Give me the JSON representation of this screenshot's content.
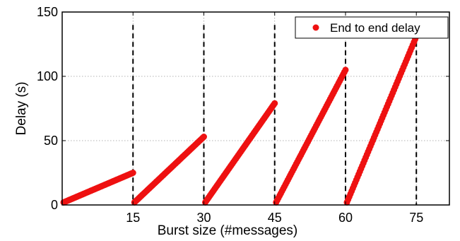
{
  "chart_data": {
    "type": "scatter",
    "title": "",
    "xlabel": "Burst size (#messages)",
    "ylabel": "Delay (s)",
    "xlim": [
      0,
      82
    ],
    "ylim": [
      0,
      150
    ],
    "x_ticks": [
      15,
      30,
      45,
      60,
      75
    ],
    "x_tick_labels": [
      "15",
      "30",
      "45",
      "60",
      "75"
    ],
    "y_ticks": [
      0,
      50,
      100,
      150
    ],
    "y_tick_labels": [
      "0",
      "50",
      "100",
      "150"
    ],
    "grid": true,
    "legend_position": "top-right",
    "series": [
      {
        "name": "End to end delay",
        "color": "#ee1111",
        "bursts": [
          {
            "start": 0,
            "end": 15,
            "delay_first": 2,
            "delay_last": 25
          },
          {
            "start": 15,
            "end": 30,
            "delay_first": 2,
            "delay_last": 53
          },
          {
            "start": 30,
            "end": 45,
            "delay_first": 2,
            "delay_last": 79
          },
          {
            "start": 45,
            "end": 60,
            "delay_first": 2,
            "delay_last": 105
          },
          {
            "start": 60,
            "end": 75,
            "delay_first": 2,
            "delay_last": 131
          }
        ]
      }
    ],
    "burst_boundaries": [
      15,
      30,
      45,
      60,
      75
    ]
  }
}
